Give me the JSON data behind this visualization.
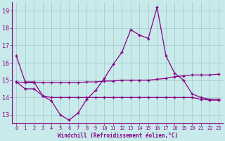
{
  "x": [
    0,
    1,
    2,
    3,
    4,
    5,
    6,
    7,
    8,
    9,
    10,
    11,
    12,
    13,
    14,
    15,
    16,
    17,
    18,
    19,
    20,
    21,
    22,
    23
  ],
  "line1": [
    16.4,
    14.9,
    14.9,
    14.1,
    13.8,
    13.0,
    12.7,
    13.1,
    13.9,
    14.4,
    15.1,
    15.9,
    16.6,
    17.9,
    17.6,
    17.4,
    19.2,
    16.4,
    15.4,
    15.0,
    14.2,
    14.0,
    13.9,
    13.9
  ],
  "line2": [
    14.9,
    14.85,
    14.85,
    14.85,
    14.85,
    14.85,
    14.85,
    14.85,
    14.9,
    14.9,
    14.95,
    14.95,
    15.0,
    15.0,
    15.0,
    15.0,
    15.05,
    15.1,
    15.2,
    15.25,
    15.3,
    15.3,
    15.3,
    15.35
  ],
  "line3": [
    14.9,
    14.5,
    14.5,
    14.1,
    14.0,
    14.0,
    14.0,
    14.0,
    14.0,
    14.0,
    14.0,
    14.0,
    14.0,
    14.0,
    14.0,
    14.0,
    14.0,
    14.0,
    14.0,
    14.0,
    14.0,
    13.9,
    13.85,
    13.85
  ],
  "line_color": "#880088",
  "bg_color": "#c8eaea",
  "grid_color": "#a0c8c8",
  "xlabel": "Windchill (Refroidissement éolien,°C)",
  "ylim_min": 12.5,
  "ylim_max": 19.5,
  "yticks": [
    13,
    14,
    15,
    16,
    17,
    18,
    19
  ],
  "xticks": [
    0,
    1,
    2,
    3,
    4,
    5,
    6,
    7,
    8,
    9,
    10,
    11,
    12,
    13,
    14,
    15,
    16,
    17,
    18,
    19,
    20,
    21,
    22,
    23
  ],
  "marker": "+"
}
